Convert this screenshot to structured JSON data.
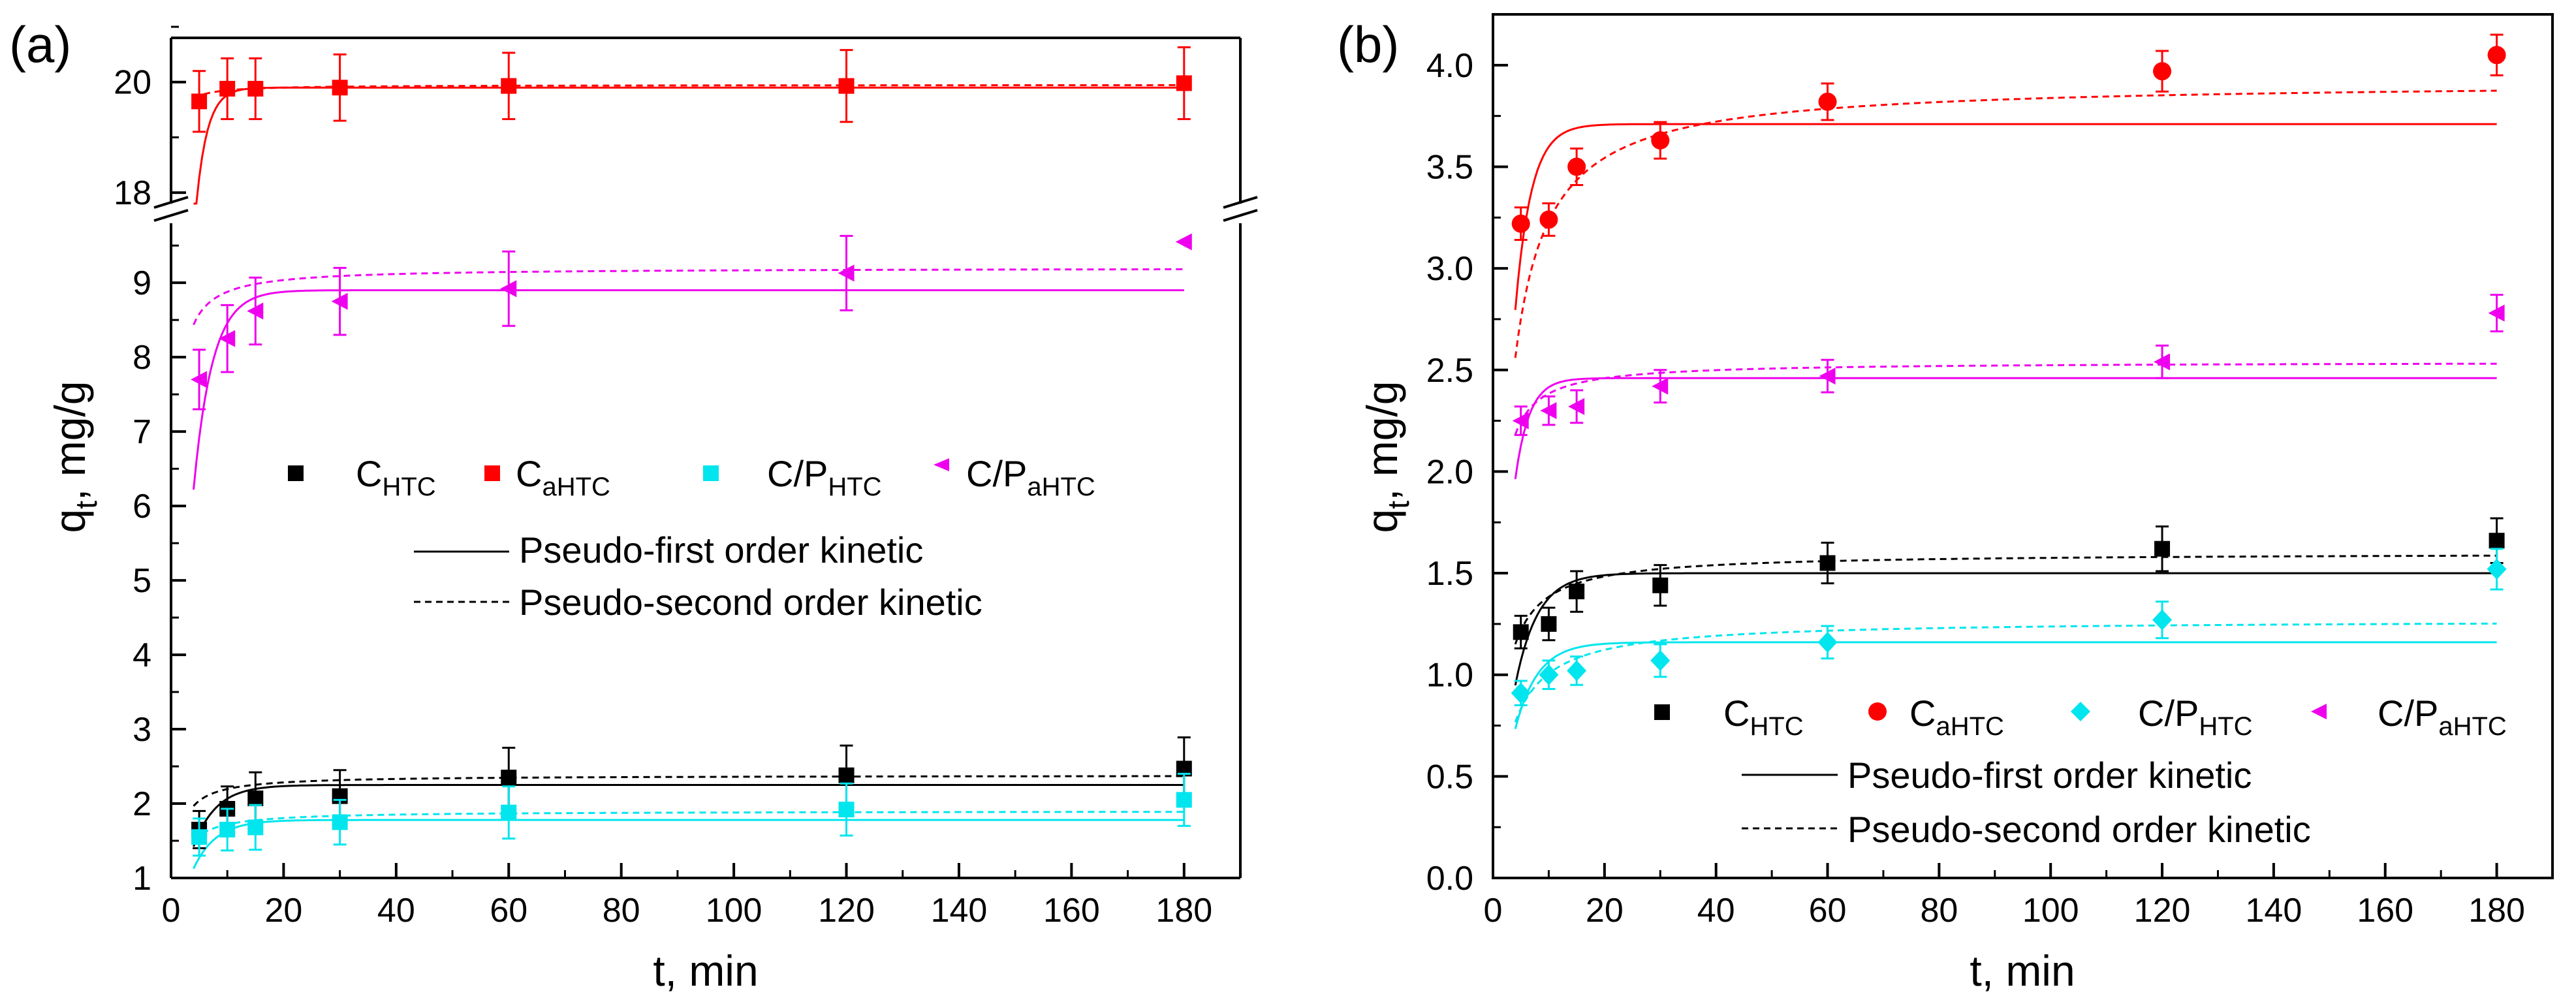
{
  "colors": {
    "C_HTC": "#000000",
    "C_aHTC": "#ff0000",
    "CP_HTC": "#00e5ee",
    "CP_aHTC": "#ee00ee"
  },
  "legend": {
    "s1_base": "C",
    "s1_sub": "HTC",
    "s2_base": "C",
    "s2_sub": "aHTC",
    "s3_base": "C/P",
    "s3_sub": "HTC",
    "s4_base": "C/P",
    "s4_sub": "aHTC",
    "fit1": "Pseudo-first order kinetic",
    "fit2": "Pseudo-second order kinetic"
  },
  "chart_data": [
    {
      "panel": "(a)",
      "type": "scatter",
      "xlabel": "t, min",
      "ylabel_base": "q",
      "ylabel_sub": "t",
      "ylabel_rest": ", mg/g",
      "xlim": [
        0,
        190
      ],
      "xticks": [
        "0",
        "20",
        "40",
        "60",
        "80",
        "100",
        "120",
        "140",
        "160",
        "180"
      ],
      "ylim_lower": [
        1,
        9.8
      ],
      "yticks_lower": [
        "1",
        "2",
        "3",
        "4",
        "5",
        "6",
        "7",
        "8",
        "9"
      ],
      "ylim_upper": [
        17.8,
        20.8
      ],
      "yticks_upper": [
        "18",
        "20"
      ],
      "axis_break": true,
      "x": [
        5,
        10,
        15,
        30,
        60,
        120,
        180
      ],
      "series": [
        {
          "name": "C_HTC",
          "marker": "square",
          "values": [
            1.65,
            1.93,
            2.07,
            2.1,
            2.35,
            2.38,
            2.47
          ],
          "errors": [
            0.25,
            0.3,
            0.35,
            0.35,
            0.4,
            0.4,
            0.42
          ],
          "fit1": {
            "qe": 2.25,
            "k": 0.25
          },
          "fit2": {
            "qe": 2.38,
            "k": 0.5
          }
        },
        {
          "name": "C_aHTC",
          "marker": "square",
          "values": [
            19.65,
            19.88,
            19.88,
            19.9,
            19.93,
            19.93,
            19.98
          ],
          "errors": [
            0.55,
            0.55,
            0.55,
            0.6,
            0.6,
            0.65,
            0.65
          ],
          "fit1": {
            "qe": 19.9,
            "k": 0.5
          },
          "fit2": {
            "qe": 19.95,
            "k": 1.0
          }
        },
        {
          "name": "C/P_HTC",
          "marker": "square",
          "values": [
            1.55,
            1.65,
            1.68,
            1.75,
            1.88,
            1.92,
            2.05
          ],
          "errors": [
            0.25,
            0.28,
            0.3,
            0.3,
            0.35,
            0.35,
            0.35
          ],
          "fit1": {
            "qe": 1.78,
            "k": 0.25
          },
          "fit2": {
            "qe": 1.9,
            "k": 0.5
          }
        },
        {
          "name": "C/P_aHTC",
          "marker": "triangle-left",
          "values": [
            7.7,
            8.25,
            8.62,
            8.75,
            8.92,
            9.13,
            9.55
          ],
          "errors": [
            0.4,
            0.45,
            0.45,
            0.45,
            0.5,
            0.5,
            0.0
          ],
          "fit1": {
            "qe": 8.9,
            "k": 0.3
          },
          "fit2": {
            "qe": 9.2,
            "k": 0.3
          }
        }
      ]
    },
    {
      "panel": "(b)",
      "type": "scatter",
      "xlabel": "t, min",
      "ylabel_base": "q",
      "ylabel_sub": "t",
      "ylabel_rest": ", mg/g",
      "xlim": [
        0,
        190
      ],
      "xticks": [
        "0",
        "20",
        "40",
        "60",
        "80",
        "100",
        "120",
        "140",
        "160",
        "180"
      ],
      "ylim": [
        0,
        4.25
      ],
      "yticks": [
        "0.0",
        "0.5",
        "1.0",
        "1.5",
        "2.0",
        "2.5",
        "3.0",
        "3.5",
        "4.0"
      ],
      "x": [
        5,
        10,
        15,
        30,
        60,
        120,
        180
      ],
      "series": [
        {
          "name": "C_HTC",
          "marker": "square",
          "values": [
            1.21,
            1.25,
            1.41,
            1.44,
            1.55,
            1.62,
            1.66
          ],
          "errors": [
            0.08,
            0.08,
            0.1,
            0.1,
            0.1,
            0.11,
            0.11
          ],
          "fit1": {
            "qe": 1.5,
            "k": 0.25
          },
          "fit2": {
            "qe": 1.6,
            "k": 0.4
          }
        },
        {
          "name": "C_aHTC",
          "marker": "circle",
          "values": [
            3.22,
            3.24,
            3.5,
            3.63,
            3.82,
            3.97,
            4.05
          ],
          "errors": [
            0.08,
            0.08,
            0.09,
            0.09,
            0.09,
            0.1,
            0.1
          ],
          "fit1": {
            "qe": 3.71,
            "k": 0.35
          },
          "fit2": {
            "qe": 3.92,
            "k": 0.12
          }
        },
        {
          "name": "C/P_HTC",
          "marker": "diamond",
          "values": [
            0.91,
            1.0,
            1.02,
            1.07,
            1.16,
            1.27,
            1.52
          ],
          "errors": [
            0.06,
            0.07,
            0.07,
            0.08,
            0.08,
            0.09,
            0.1
          ],
          "fit1": {
            "qe": 1.16,
            "k": 0.25
          },
          "fit2": {
            "qe": 1.27,
            "k": 0.3
          }
        },
        {
          "name": "C/P_aHTC",
          "marker": "triangle-left",
          "values": [
            2.25,
            2.3,
            2.32,
            2.42,
            2.47,
            2.54,
            2.78
          ],
          "errors": [
            0.07,
            0.07,
            0.08,
            0.08,
            0.08,
            0.08,
            0.09
          ],
          "fit1": {
            "qe": 2.46,
            "k": 0.4
          },
          "fit2": {
            "qe": 2.54,
            "k": 0.6
          }
        }
      ]
    }
  ]
}
